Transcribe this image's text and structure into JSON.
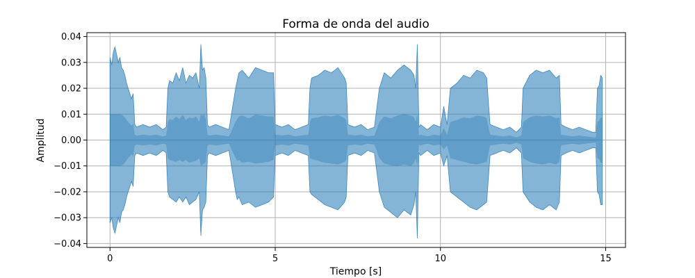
{
  "chart_data": {
    "type": "area",
    "title": "Forma de onda del audio",
    "xlabel": "Tiempo [s]",
    "ylabel": "Amplitud",
    "xlim": [
      -0.7,
      15.6
    ],
    "ylim": [
      -0.0415,
      0.0415
    ],
    "xticks": [
      0,
      5,
      10,
      15
    ],
    "yticks": [
      -0.04,
      -0.03,
      -0.02,
      -0.01,
      0.0,
      0.01,
      0.02,
      0.03,
      0.04
    ],
    "xtick_labels": [
      "0",
      "5",
      "10",
      "15"
    ],
    "ytick_labels": [
      "−0.04",
      "−0.03",
      "−0.02",
      "−0.01",
      "0.00",
      "0.01",
      "0.02",
      "0.03",
      "0.04"
    ],
    "grid": true,
    "color": "#1f77b4",
    "series": [
      {
        "x": [
          0.0,
          0.05,
          0.1,
          0.15,
          0.2,
          0.25,
          0.3,
          0.35,
          0.4,
          0.45,
          0.5,
          0.55,
          0.6,
          0.65,
          0.7,
          0.75,
          0.8,
          1.0,
          1.2,
          1.4,
          1.6,
          1.7,
          1.75,
          1.8,
          1.9,
          2.0,
          2.1,
          2.2,
          2.3,
          2.4,
          2.5,
          2.6,
          2.7,
          2.75,
          2.8,
          2.85,
          2.9,
          2.95,
          3.0,
          3.2,
          3.4,
          3.6,
          3.8,
          3.85,
          3.9,
          4.0,
          4.2,
          4.4,
          4.6,
          4.8,
          4.95,
          5.0,
          5.2,
          5.4,
          5.6,
          5.8,
          6.0,
          6.05,
          6.1,
          6.3,
          6.5,
          6.7,
          6.9,
          7.1,
          7.15,
          7.2,
          7.4,
          7.6,
          7.8,
          8.0,
          8.15,
          8.2,
          8.3,
          8.5,
          8.7,
          8.9,
          9.1,
          9.2,
          9.25,
          9.3,
          9.35,
          9.4,
          9.6,
          9.8,
          10.0,
          10.1,
          10.2,
          10.3,
          10.5,
          10.7,
          10.9,
          11.1,
          11.3,
          11.4,
          11.5,
          11.7,
          11.9,
          12.1,
          12.3,
          12.45,
          12.5,
          12.7,
          12.9,
          13.1,
          13.3,
          13.5,
          13.6,
          13.65,
          13.8,
          14.0,
          14.2,
          14.4,
          14.6,
          14.7,
          14.75,
          14.8,
          14.85,
          14.9
        ],
        "upper": [
          0.032,
          0.029,
          0.034,
          0.036,
          0.033,
          0.03,
          0.032,
          0.028,
          0.027,
          0.025,
          0.022,
          0.02,
          0.018,
          0.016,
          0.018,
          0.006,
          0.005,
          0.006,
          0.005,
          0.006,
          0.004,
          0.005,
          0.02,
          0.023,
          0.022,
          0.026,
          0.023,
          0.028,
          0.022,
          0.025,
          0.024,
          0.026,
          0.02,
          0.037,
          0.027,
          0.028,
          0.024,
          0.006,
          0.005,
          0.006,
          0.005,
          0.004,
          0.02,
          0.023,
          0.026,
          0.027,
          0.024,
          0.028,
          0.027,
          0.026,
          0.026,
          0.006,
          0.005,
          0.006,
          0.004,
          0.005,
          0.006,
          0.02,
          0.024,
          0.025,
          0.027,
          0.026,
          0.028,
          0.024,
          0.022,
          0.006,
          0.005,
          0.006,
          0.004,
          0.005,
          0.02,
          0.022,
          0.026,
          0.024,
          0.027,
          0.029,
          0.027,
          0.025,
          0.02,
          0.037,
          0.005,
          0.006,
          0.004,
          0.006,
          0.005,
          0.013,
          0.006,
          0.02,
          0.022,
          0.025,
          0.024,
          0.027,
          0.026,
          0.024,
          0.006,
          0.005,
          0.004,
          0.005,
          0.003,
          0.005,
          0.02,
          0.025,
          0.027,
          0.026,
          0.027,
          0.024,
          0.025,
          0.006,
          0.005,
          0.004,
          0.005,
          0.004,
          0.003,
          0.003,
          0.02,
          0.021,
          0.025,
          0.024
        ],
        "lower": [
          -0.032,
          -0.03,
          -0.034,
          -0.036,
          -0.033,
          -0.03,
          -0.032,
          -0.028,
          -0.027,
          -0.025,
          -0.022,
          -0.02,
          -0.018,
          -0.016,
          -0.018,
          -0.006,
          -0.005,
          -0.006,
          -0.005,
          -0.006,
          -0.004,
          -0.005,
          -0.02,
          -0.022,
          -0.023,
          -0.024,
          -0.022,
          -0.024,
          -0.022,
          -0.025,
          -0.024,
          -0.023,
          -0.02,
          -0.037,
          -0.027,
          -0.026,
          -0.024,
          -0.006,
          -0.005,
          -0.006,
          -0.005,
          -0.004,
          -0.02,
          -0.023,
          -0.022,
          -0.025,
          -0.024,
          -0.026,
          -0.025,
          -0.024,
          -0.022,
          -0.006,
          -0.005,
          -0.006,
          -0.004,
          -0.005,
          -0.006,
          -0.02,
          -0.021,
          -0.023,
          -0.025,
          -0.026,
          -0.027,
          -0.024,
          -0.022,
          -0.006,
          -0.005,
          -0.006,
          -0.004,
          -0.005,
          -0.02,
          -0.022,
          -0.026,
          -0.028,
          -0.03,
          -0.027,
          -0.029,
          -0.025,
          -0.02,
          -0.038,
          -0.005,
          -0.006,
          -0.004,
          -0.006,
          -0.005,
          -0.01,
          -0.006,
          -0.02,
          -0.022,
          -0.024,
          -0.026,
          -0.027,
          -0.025,
          -0.024,
          -0.006,
          -0.005,
          -0.004,
          -0.005,
          -0.003,
          -0.005,
          -0.02,
          -0.024,
          -0.026,
          -0.027,
          -0.025,
          -0.027,
          -0.024,
          -0.006,
          -0.005,
          -0.004,
          -0.005,
          -0.004,
          -0.003,
          -0.003,
          -0.02,
          -0.021,
          -0.025,
          -0.025
        ]
      }
    ]
  }
}
